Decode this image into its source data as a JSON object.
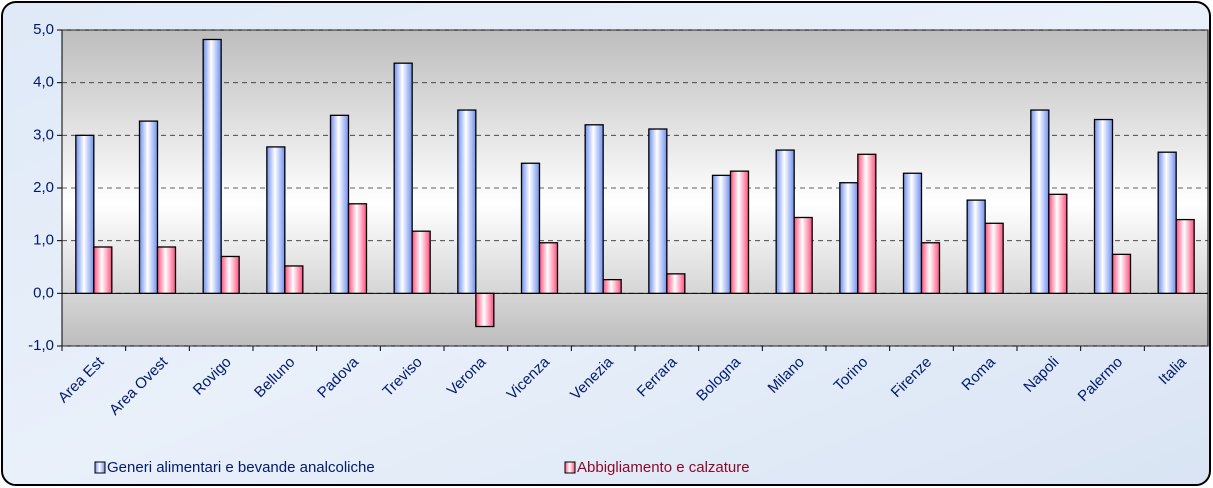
{
  "chart_data": {
    "type": "bar",
    "categories": [
      "Area Est",
      "Area Ovest",
      "Rovigo",
      "Belluno",
      "Padova",
      "Treviso",
      "Verona",
      "Vicenza",
      "Venezia",
      "Ferrara",
      "Bologna",
      "Milano",
      "Torino",
      "Firenze",
      "Roma",
      "Napoli",
      "Palermo",
      "Italia"
    ],
    "series": [
      {
        "name": "Generi alimentari e bevande analcoliche",
        "color": "#6f8fef",
        "values": [
          3.0,
          3.27,
          4.82,
          2.78,
          3.38,
          4.37,
          3.48,
          2.47,
          3.2,
          3.12,
          2.24,
          2.72,
          2.1,
          2.28,
          1.77,
          3.48,
          3.3,
          2.68
        ]
      },
      {
        "name": "Abbigliamento e calzature",
        "color": "#ff4f7f",
        "values": [
          0.88,
          0.88,
          0.7,
          0.52,
          1.7,
          1.18,
          -0.63,
          0.96,
          0.26,
          0.37,
          2.32,
          1.44,
          2.64,
          0.96,
          1.33,
          1.88,
          0.74,
          1.4
        ]
      }
    ],
    "ylim": [
      -1,
      5
    ],
    "yticks": [
      {
        "value": -1,
        "label": "-1,0"
      },
      {
        "value": 0,
        "label": "0,0"
      },
      {
        "value": 1,
        "label": "1,0"
      },
      {
        "value": 2,
        "label": "2,0"
      },
      {
        "value": 3,
        "label": "3,0"
      },
      {
        "value": 4,
        "label": "4,0"
      },
      {
        "value": 5,
        "label": "5,0"
      }
    ],
    "grid": true
  }
}
